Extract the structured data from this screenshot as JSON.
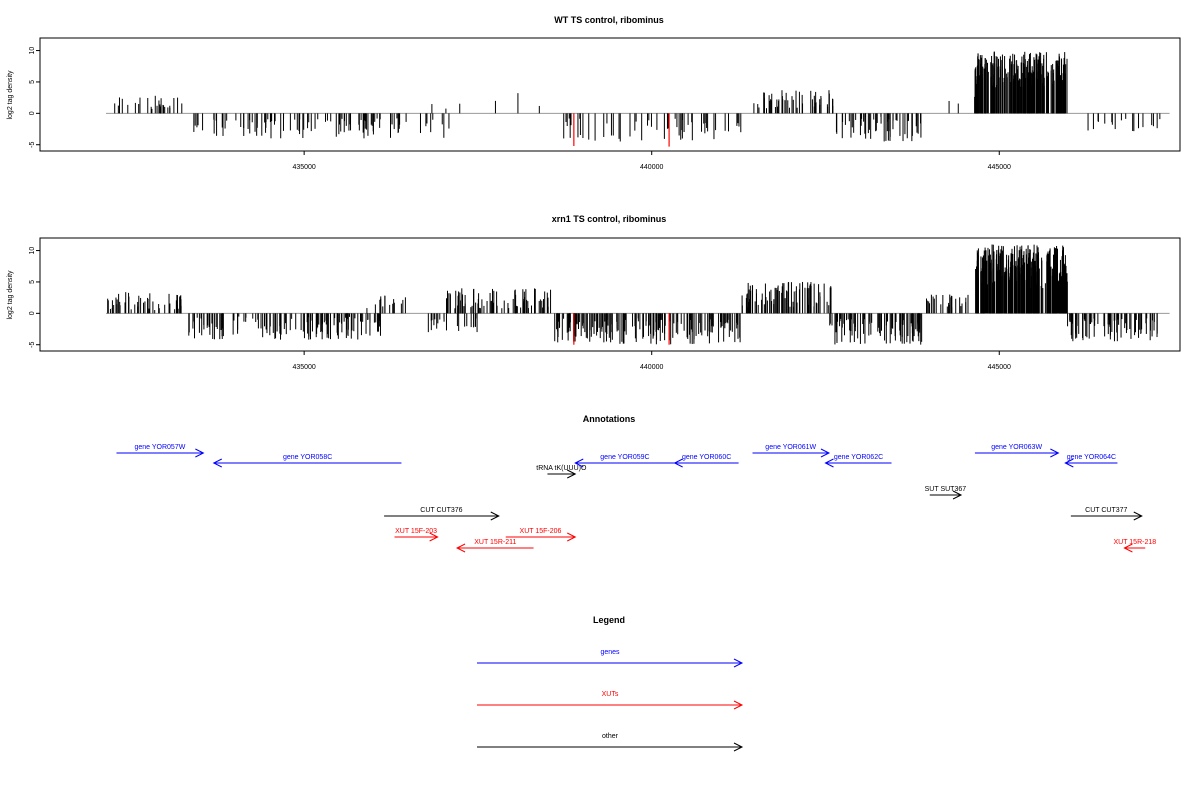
{
  "chart_data": [
    {
      "type": "bar",
      "title": "WT TS control, ribominus",
      "ylabel": "log2 tag density",
      "xlabel": "",
      "xlim": [
        431200,
        447600
      ],
      "ylim": [
        -6,
        12
      ],
      "xticks": [
        "435000",
        "440000",
        "445000"
      ],
      "yticks": [
        "-5",
        "0",
        "5",
        "10"
      ],
      "baseline": 0,
      "colors": {
        "bars": "#000000",
        "highlight": "#ff0000",
        "baseline": "#999999"
      },
      "regions": [
        {
          "from": 432150,
          "to": 433270,
          "min": 0.5,
          "max": 2.8,
          "density": 0.35
        },
        {
          "from": 433380,
          "to": 437100,
          "min": -4.0,
          "max": -0.8,
          "density": 0.4
        },
        {
          "from": 436700,
          "to": 438900,
          "min": 0.5,
          "max": 3.5,
          "density": 0.04
        },
        {
          "from": 438700,
          "to": 441300,
          "min": -4.5,
          "max": -0.8,
          "density": 0.3
        },
        {
          "from": 441450,
          "to": 442650,
          "min": 0.8,
          "max": 3.8,
          "density": 0.6
        },
        {
          "from": 442650,
          "to": 443950,
          "min": -4.5,
          "max": -0.5,
          "density": 0.6
        },
        {
          "from": 444200,
          "to": 444650,
          "min": 0.5,
          "max": 2.7,
          "density": 0.1
        },
        {
          "from": 444650,
          "to": 445980,
          "min": 4.0,
          "max": 10.0,
          "density": 2.5
        },
        {
          "from": 446050,
          "to": 447350,
          "min": -3.0,
          "max": -0.8,
          "density": 0.2
        }
      ],
      "highlights": [
        {
          "x": 438880,
          "y": -5.2
        },
        {
          "x": 440250,
          "y": -5.3
        }
      ]
    },
    {
      "type": "bar",
      "title": "xrn1 TS control, ribominus",
      "ylabel": "log2 tag density",
      "xlabel": "",
      "xlim": [
        431200,
        447600
      ],
      "ylim": [
        -6,
        12
      ],
      "xticks": [
        "435000",
        "440000",
        "445000"
      ],
      "yticks": [
        "-5",
        "0",
        "5",
        "10"
      ],
      "baseline": 0,
      "colors": {
        "bars": "#000000",
        "highlight": "#ff0000",
        "baseline": "#999999"
      },
      "regions": [
        {
          "from": 432150,
          "to": 433270,
          "min": 0.5,
          "max": 3.5,
          "density": 0.6
        },
        {
          "from": 433300,
          "to": 436100,
          "min": -4.2,
          "max": -0.5,
          "density": 0.7
        },
        {
          "from": 435900,
          "to": 436600,
          "min": 0.8,
          "max": 3.0,
          "density": 0.3
        },
        {
          "from": 436700,
          "to": 437500,
          "min": -3.0,
          "max": -0.5,
          "density": 0.4
        },
        {
          "from": 437000,
          "to": 438600,
          "min": 0.8,
          "max": 4.0,
          "density": 0.7
        },
        {
          "from": 438600,
          "to": 441300,
          "min": -5.0,
          "max": -0.8,
          "density": 0.9
        },
        {
          "from": 441300,
          "to": 442600,
          "min": 1.0,
          "max": 5.0,
          "density": 0.9
        },
        {
          "from": 442550,
          "to": 443900,
          "min": -5.0,
          "max": -0.8,
          "density": 0.9
        },
        {
          "from": 443900,
          "to": 444650,
          "min": 0.8,
          "max": 3.0,
          "density": 0.5
        },
        {
          "from": 444650,
          "to": 445980,
          "min": 4.0,
          "max": 11.0,
          "density": 3.0
        },
        {
          "from": 445980,
          "to": 447300,
          "min": -4.5,
          "max": -0.8,
          "density": 0.8
        }
      ],
      "highlights": [
        {
          "x": 438880,
          "y": -5.0
        },
        {
          "x": 440250,
          "y": -5.0
        }
      ]
    }
  ],
  "annotations": {
    "title": "Annotations",
    "colors": {
      "gene": "#0000ff",
      "xut": "#ff0000",
      "other": "#000000"
    },
    "features": [
      {
        "label": "gene YOR057W",
        "kind": "gene",
        "row": 0,
        "from": 432300,
        "to": 433550,
        "dir": "right"
      },
      {
        "label": "gene YOR058C",
        "kind": "gene",
        "row": 1,
        "from": 433700,
        "to": 436400,
        "dir": "left"
      },
      {
        "label": "tRNA tK(UUU)O",
        "kind": "other",
        "row": 2,
        "from": 438500,
        "to": 438900,
        "dir": "right"
      },
      {
        "label": "gene YOR059C",
        "kind": "gene",
        "row": 1,
        "from": 438900,
        "to": 440330,
        "dir": "left"
      },
      {
        "label": "gene YOR060C",
        "kind": "gene",
        "row": 1,
        "from": 440330,
        "to": 441250,
        "dir": "left"
      },
      {
        "label": "gene YOR061W",
        "kind": "gene",
        "row": 0,
        "from": 441450,
        "to": 442550,
        "dir": "right"
      },
      {
        "label": "gene YOR062C",
        "kind": "gene",
        "row": 1,
        "from": 442500,
        "to": 443450,
        "dir": "left"
      },
      {
        "label": "SUT SUT367",
        "kind": "other",
        "row": 3,
        "from": 444000,
        "to": 444450,
        "dir": "right"
      },
      {
        "label": "gene YOR063W",
        "kind": "gene",
        "row": 0,
        "from": 444650,
        "to": 445850,
        "dir": "right"
      },
      {
        "label": "gene YOR064C",
        "kind": "gene",
        "row": 1,
        "from": 445950,
        "to": 446700,
        "dir": "left"
      },
      {
        "label": "CUT CUT376",
        "kind": "other",
        "row": 4,
        "from": 436150,
        "to": 437800,
        "dir": "right"
      },
      {
        "label": "CUT CUT377",
        "kind": "other",
        "row": 4,
        "from": 446030,
        "to": 447050,
        "dir": "right"
      },
      {
        "label": "XUT 15F-203",
        "kind": "xut",
        "row": 5,
        "from": 436300,
        "to": 436920,
        "dir": "right"
      },
      {
        "label": "XUT 15F-206",
        "kind": "xut",
        "row": 5,
        "from": 437900,
        "to": 438900,
        "dir": "right"
      },
      {
        "label": "XUT 15R-211",
        "kind": "xut",
        "row": 6,
        "from": 437200,
        "to": 438300,
        "dir": "left"
      },
      {
        "label": "XUT 15R-218",
        "kind": "xut",
        "row": 6,
        "from": 446800,
        "to": 447100,
        "dir": "left"
      }
    ]
  },
  "legend": {
    "title": "Legend",
    "entries": [
      {
        "label": "genes",
        "kind": "gene"
      },
      {
        "label": "XUTs",
        "kind": "xut"
      },
      {
        "label": "other",
        "kind": "other"
      }
    ]
  }
}
